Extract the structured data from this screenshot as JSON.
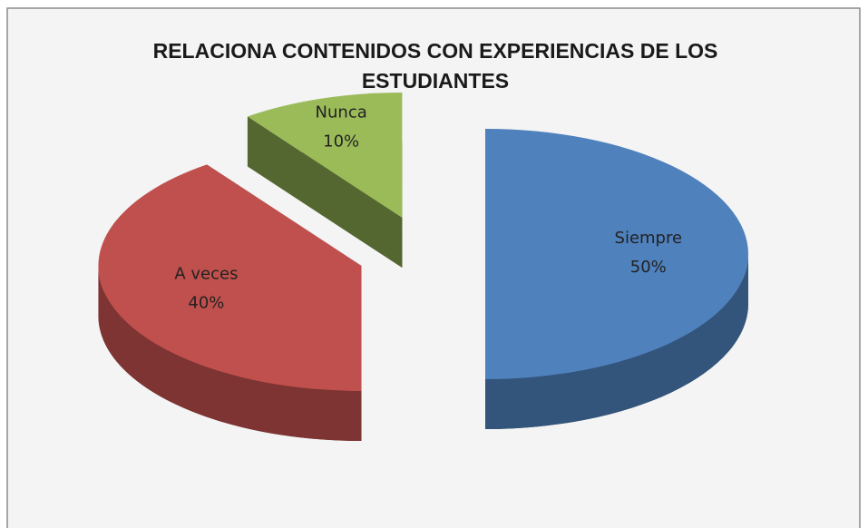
{
  "chart_data": {
    "type": "pie",
    "title": "RELACIONA CONTENIDOS CON EXPERIENCIAS DE LOS ESTUDIANTES",
    "categories": [
      "Siempre",
      "A veces",
      "Nunca"
    ],
    "values": [
      50,
      40,
      10
    ],
    "value_labels": [
      "50%",
      "40%",
      "10%"
    ],
    "colors": [
      "#4f81bd",
      "#c0504d",
      "#9bbb59"
    ]
  }
}
